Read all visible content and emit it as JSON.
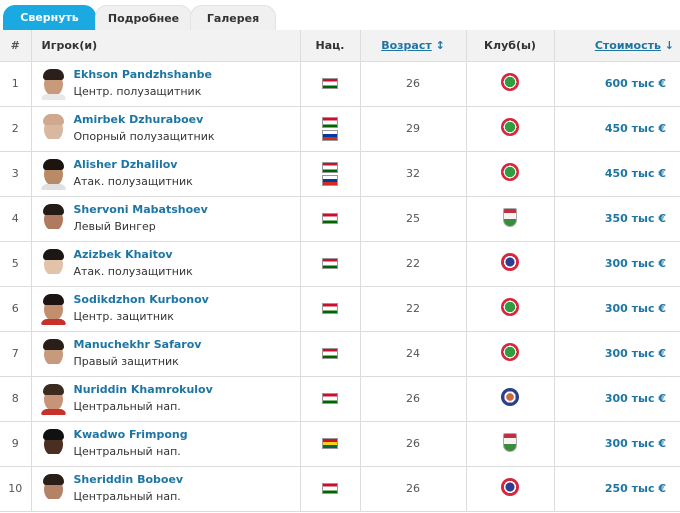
{
  "tabs": [
    {
      "label": "Свернуть",
      "active": true
    },
    {
      "label": "Подробнее",
      "active": false
    },
    {
      "label": "Галерея",
      "active": false
    }
  ],
  "table": {
    "headers": {
      "num": "#",
      "player": "Игрок(и)",
      "nat": "Нац.",
      "age": "Возраст",
      "age_sort_icon": "↕",
      "club": "Клуб(ы)",
      "value": "Стоимость",
      "value_sort_icon": "↓"
    },
    "rows": [
      {
        "num": "1",
        "name": "Ekhson Pandzhshanbe",
        "position": "Центр. полузащитник",
        "nat": [
          "tajikistan"
        ],
        "age": "26",
        "club": "istiklol",
        "value": "600 тыс €"
      },
      {
        "num": "2",
        "name": "Amirbek Dzhuraboev",
        "position": "Опорный полузащитник",
        "nat": [
          "tajikistan",
          "russia"
        ],
        "age": "29",
        "club": "istiklol",
        "value": "450 тыс €"
      },
      {
        "num": "3",
        "name": "Alisher Dzhalilov",
        "position": "Атак. полузащитник",
        "nat": [
          "tajikistan",
          "russia"
        ],
        "age": "32",
        "club": "istiklol",
        "value": "450 тыс €"
      },
      {
        "num": "4",
        "name": "Shervoni Mabatshoev",
        "position": "Левый Вингер",
        "nat": [
          "tajikistan"
        ],
        "age": "25",
        "club": "khujand",
        "value": "350 тыс €"
      },
      {
        "num": "5",
        "name": "Azizbek Khaitov",
        "position": "Атак. полузащитник",
        "nat": [
          "tajikistan"
        ],
        "age": "22",
        "club": "ravshan",
        "value": "300 тыс €"
      },
      {
        "num": "6",
        "name": "Sodikdzhon Kurbonov",
        "position": "Центр. защитник",
        "nat": [
          "tajikistan"
        ],
        "age": "22",
        "club": "istiklol",
        "value": "300 тыс €"
      },
      {
        "num": "7",
        "name": "Manuchekhr Safarov",
        "position": "Правый защитник",
        "nat": [
          "tajikistan"
        ],
        "age": "24",
        "club": "istiklol",
        "value": "300 тыс €"
      },
      {
        "num": "8",
        "name": "Nuriddin Khamrokulov",
        "position": "Центральный нап.",
        "nat": [
          "tajikistan"
        ],
        "age": "26",
        "club": "kuktosh",
        "value": "300 тыс €"
      },
      {
        "num": "9",
        "name": "Kwadwo Frimpong",
        "position": "Центральный нап.",
        "nat": [
          "ghana"
        ],
        "age": "26",
        "club": "khujand",
        "value": "300 тыс €"
      },
      {
        "num": "10",
        "name": "Sheriddin Boboev",
        "position": "Центральный нап.",
        "nat": [
          "tajikistan"
        ],
        "age": "26",
        "club": "ravshan",
        "value": "250 тыс €"
      }
    ]
  },
  "colors": {
    "tab_active": "#1ba9e1",
    "link": "#1d75a3",
    "header_bg": "#f2f2f2"
  }
}
